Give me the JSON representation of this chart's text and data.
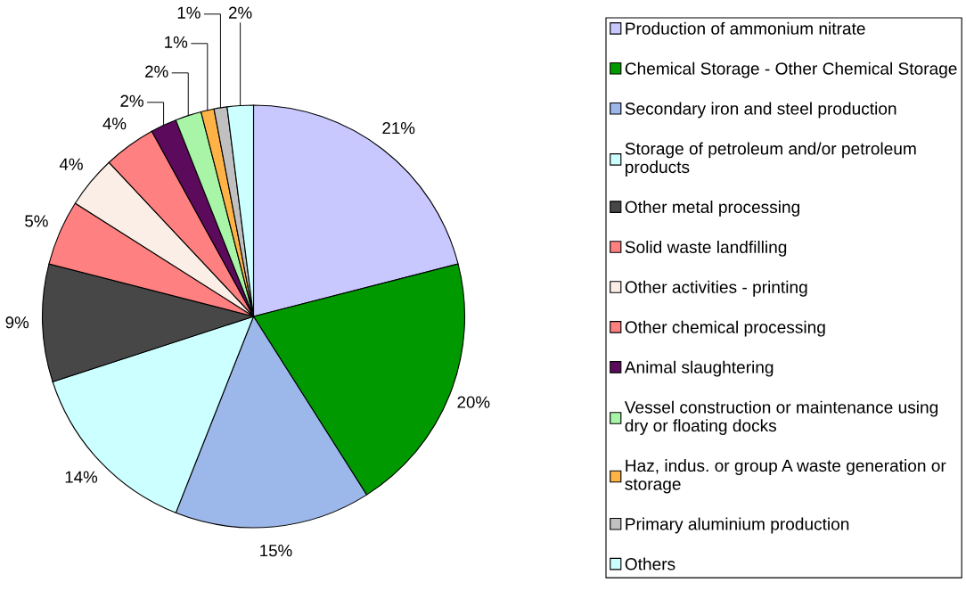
{
  "chart_data": {
    "type": "pie",
    "categories": [
      "Production of ammonium nitrate",
      "Chemical Storage - Other Chemical Storage",
      "Secondary iron and steel production",
      "Storage of petroleum and/or petroleum products",
      "Other metal processing",
      "Solid waste landfilling",
      "Other activities - printing",
      "Other chemical processing",
      "Animal slaughtering",
      "Vessel construction or maintenance using dry or floating docks",
      "Haz, indus. or group A waste generation or storage",
      "Primary aluminium production",
      "Others"
    ],
    "values": [
      21,
      20,
      15,
      14,
      9,
      5,
      4,
      4,
      2,
      2,
      1,
      1,
      2
    ],
    "value_labels": [
      "21%",
      "20%",
      "15%",
      "14%",
      "9%",
      "5%",
      "4%",
      "4%",
      "2%",
      "2%",
      "1%",
      "1%",
      "2%"
    ],
    "colors": [
      "#c8c8ff",
      "#009a00",
      "#9cb8ea",
      "#ccffff",
      "#474747",
      "#ff8080",
      "#fbeee6",
      "#ff8080",
      "#5c0a5c",
      "#a8f5a8",
      "#ffb347",
      "#c0c0c0",
      "#ccffff"
    ],
    "legend": "right"
  }
}
